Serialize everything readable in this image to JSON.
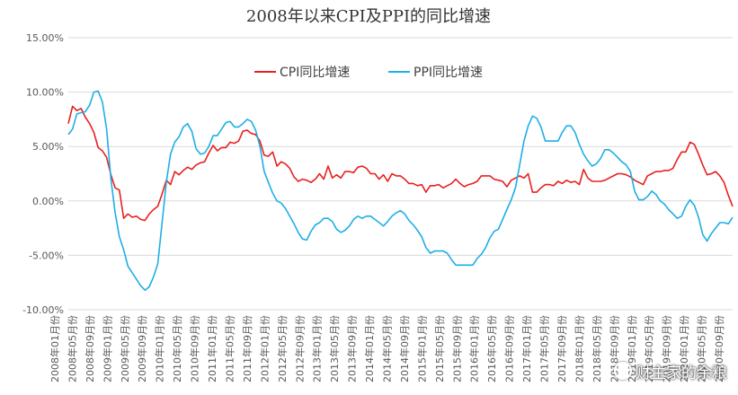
{
  "chart_data": {
    "type": "line",
    "title": "2008年以来CPI及PPI的同比增速",
    "xlabel": "",
    "ylabel": "",
    "ylim": [
      -0.1,
      0.15
    ],
    "y_ticks": [
      "15.00%",
      "10.00%",
      "5.00%",
      "0.00%",
      "-5.00%",
      "-10.00%"
    ],
    "y_tick_values": [
      0.15,
      0.1,
      0.05,
      0.0,
      -0.05,
      -0.1
    ],
    "grid": true,
    "legend_position": "top-center",
    "x_tick_labels": [
      "2008年01月份",
      "2008年05月份",
      "2008年09月份",
      "2009年01月份",
      "2009年05月份",
      "2009年09月份",
      "2010年01月份",
      "2010年05月份",
      "2010年09月份",
      "2011年01月份",
      "2011年05月份",
      "2011年09月份",
      "2012年01月份",
      "2012年05月份",
      "2012年09月份",
      "2013年01月份",
      "2013年05月份",
      "2013年09月份",
      "2014年01月份",
      "2014年05月份",
      "2014年09月份",
      "2015年01月份",
      "2015年05月份",
      "2015年09月份",
      "2016年01月份",
      "2016年05月份",
      "2016年09月份",
      "2017年01月份",
      "2017年05月份",
      "2017年09月份",
      "2018年01月份",
      "2018年05月份",
      "2018年09月份",
      "2019年01月份",
      "2019年05月份",
      "2019年09月份",
      "2020年01月份",
      "2020年05月份",
      "2020年09月份"
    ],
    "series": [
      {
        "name": "CPI同比增速",
        "color": "#e8201f",
        "values": [
          0.071,
          0.087,
          0.083,
          0.085,
          0.077,
          0.071,
          0.063,
          0.049,
          0.046,
          0.04,
          0.024,
          0.012,
          0.01,
          -0.016,
          -0.012,
          -0.015,
          -0.014,
          -0.017,
          -0.018,
          -0.012,
          -0.008,
          -0.005,
          0.006,
          0.019,
          0.015,
          0.027,
          0.024,
          0.028,
          0.031,
          0.029,
          0.033,
          0.035,
          0.036,
          0.044,
          0.051,
          0.046,
          0.049,
          0.049,
          0.054,
          0.053,
          0.055,
          0.064,
          0.065,
          0.062,
          0.061,
          0.055,
          0.042,
          0.041,
          0.045,
          0.032,
          0.036,
          0.034,
          0.03,
          0.022,
          0.018,
          0.02,
          0.019,
          0.017,
          0.02,
          0.025,
          0.02,
          0.032,
          0.021,
          0.024,
          0.021,
          0.027,
          0.027,
          0.026,
          0.031,
          0.032,
          0.03,
          0.025,
          0.025,
          0.02,
          0.024,
          0.018,
          0.025,
          0.023,
          0.023,
          0.02,
          0.016,
          0.016,
          0.014,
          0.015,
          0.008,
          0.014,
          0.014,
          0.015,
          0.012,
          0.014,
          0.016,
          0.02,
          0.016,
          0.013,
          0.015,
          0.016,
          0.018,
          0.023,
          0.023,
          0.023,
          0.02,
          0.019,
          0.018,
          0.013,
          0.019,
          0.021,
          0.023,
          0.021,
          0.025,
          0.008,
          0.008,
          0.012,
          0.015,
          0.015,
          0.014,
          0.018,
          0.016,
          0.019,
          0.017,
          0.018,
          0.015,
          0.029,
          0.021,
          0.018,
          0.018,
          0.018,
          0.019,
          0.021,
          0.023,
          0.025,
          0.025,
          0.024,
          0.022,
          0.019,
          0.017,
          0.015,
          0.023,
          0.025,
          0.027,
          0.027,
          0.028,
          0.028,
          0.03,
          0.038,
          0.045,
          0.045,
          0.054,
          0.052,
          0.043,
          0.033,
          0.024,
          0.025,
          0.027,
          0.023,
          0.017,
          0.005,
          -0.005
        ]
      },
      {
        "name": "PPI同比增速",
        "color": "#1eaee8",
        "values": [
          0.061,
          0.066,
          0.08,
          0.081,
          0.082,
          0.088,
          0.1,
          0.101,
          0.091,
          0.066,
          0.02,
          -0.011,
          -0.033,
          -0.045,
          -0.06,
          -0.066,
          -0.072,
          -0.078,
          -0.082,
          -0.079,
          -0.07,
          -0.058,
          -0.021,
          0.017,
          0.043,
          0.054,
          0.059,
          0.068,
          0.071,
          0.064,
          0.048,
          0.043,
          0.044,
          0.05,
          0.06,
          0.06,
          0.066,
          0.072,
          0.073,
          0.068,
          0.068,
          0.071,
          0.075,
          0.073,
          0.065,
          0.05,
          0.027,
          0.017,
          0.007,
          0.0,
          -0.002,
          -0.007,
          -0.014,
          -0.021,
          -0.029,
          -0.035,
          -0.036,
          -0.028,
          -0.022,
          -0.02,
          -0.016,
          -0.016,
          -0.019,
          -0.026,
          -0.029,
          -0.027,
          -0.023,
          -0.017,
          -0.014,
          -0.016,
          -0.014,
          -0.014,
          -0.017,
          -0.02,
          -0.023,
          -0.019,
          -0.014,
          -0.011,
          -0.009,
          -0.012,
          -0.018,
          -0.022,
          -0.027,
          -0.033,
          -0.043,
          -0.048,
          -0.046,
          -0.046,
          -0.046,
          -0.048,
          -0.054,
          -0.059,
          -0.059,
          -0.059,
          -0.059,
          -0.059,
          -0.053,
          -0.049,
          -0.043,
          -0.034,
          -0.028,
          -0.026,
          -0.017,
          -0.008,
          0.001,
          0.012,
          0.033,
          0.055,
          0.069,
          0.078,
          0.076,
          0.068,
          0.055,
          0.055,
          0.055,
          0.055,
          0.063,
          0.069,
          0.069,
          0.063,
          0.052,
          0.043,
          0.037,
          0.032,
          0.034,
          0.039,
          0.047,
          0.047,
          0.044,
          0.04,
          0.036,
          0.033,
          0.027,
          0.009,
          0.001,
          0.001,
          0.004,
          0.009,
          0.006,
          0.0,
          -0.003,
          -0.008,
          -0.012,
          -0.016,
          -0.014,
          -0.005,
          0.001,
          -0.004,
          -0.015,
          -0.031,
          -0.037,
          -0.03,
          -0.025,
          -0.02,
          -0.02,
          -0.021,
          -0.015
        ]
      }
    ]
  },
  "watermark": "财主家的余粮"
}
